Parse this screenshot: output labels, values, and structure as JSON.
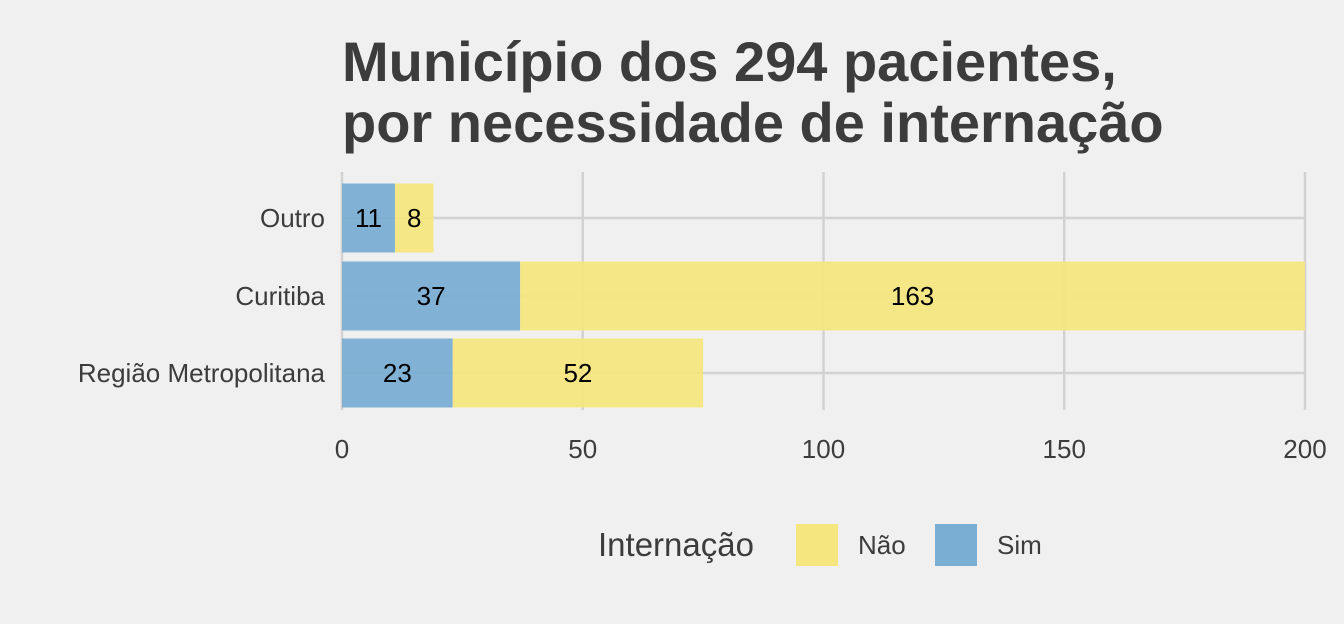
{
  "chart_data": {
    "type": "bar",
    "orientation": "horizontal",
    "stacked": true,
    "title_lines": [
      "Município dos 294 pacientes,",
      "por necessidade de internação"
    ],
    "categories": [
      "Outro",
      "Curitiba",
      "Região Metropolitana"
    ],
    "series": [
      {
        "name": "Sim",
        "color": "#7aaed3",
        "values": [
          11,
          37,
          23
        ]
      },
      {
        "name": "Não",
        "color": "#f5e67f",
        "values": [
          8,
          163,
          52
        ]
      }
    ],
    "xlim": [
      0,
      200
    ],
    "x_ticks": [
      0,
      50,
      100,
      150,
      200
    ],
    "xlabel": "",
    "ylabel": "",
    "grid": true,
    "legend": {
      "title": "Internação",
      "position": "bottom",
      "entries": [
        {
          "label": "Não",
          "color": "#f5e67f"
        },
        {
          "label": "Sim",
          "color": "#7aaed3"
        }
      ]
    }
  }
}
